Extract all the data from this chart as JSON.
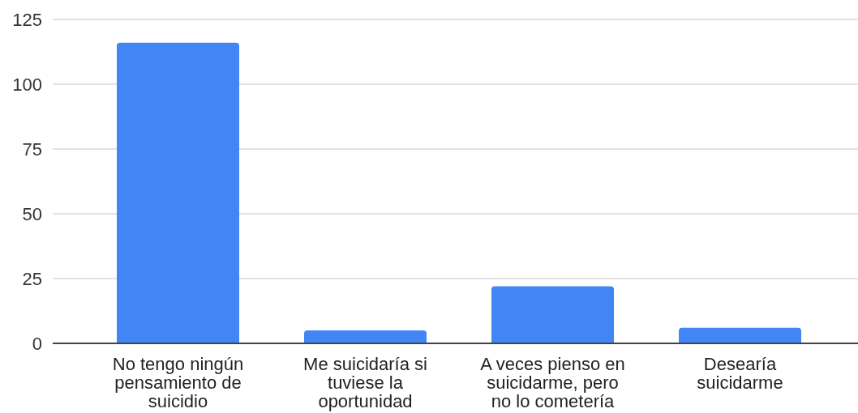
{
  "chart_data": {
    "type": "bar",
    "categories": [
      "No tengo ningún pensamiento de suicidio",
      "Me suicidaría si tuviese la oportunidad",
      "A veces pienso en suicidarme, pero no lo cometería",
      "Desearía suicidarme"
    ],
    "values": [
      116,
      5,
      22,
      6
    ],
    "color": "#4285f4",
    "ylim": [
      0,
      125
    ],
    "yticks": [
      0,
      25,
      50,
      75,
      100,
      125
    ],
    "grid": "y"
  }
}
